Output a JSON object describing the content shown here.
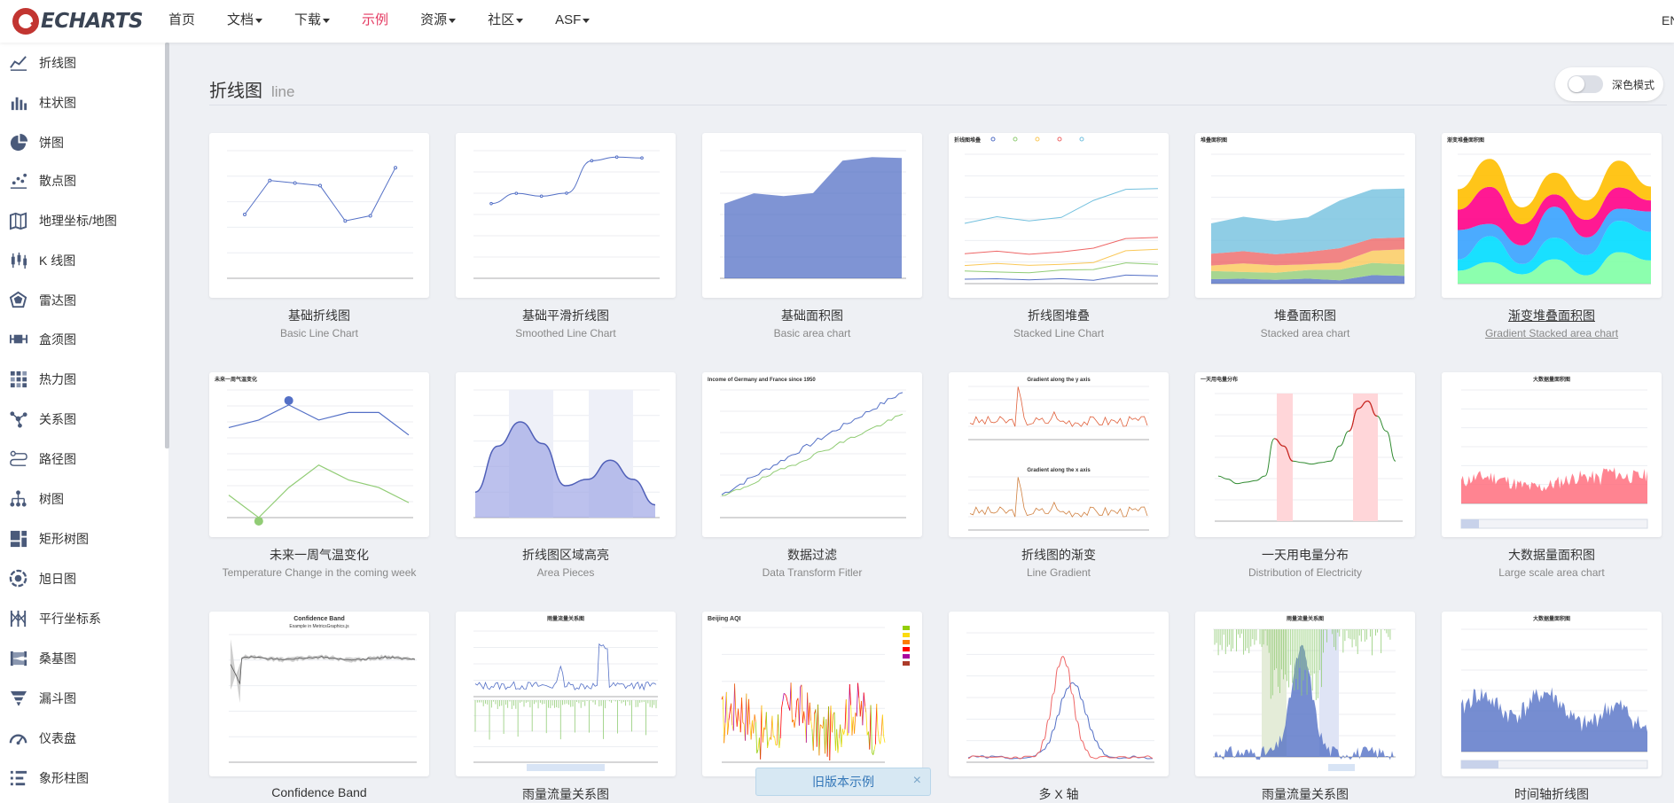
{
  "brand": {
    "logo_text": "ECHARTS",
    "accent": "#e43961",
    "logo_red": "#c23531"
  },
  "nav": {
    "items": [
      {
        "label": "首页",
        "dropdown": false,
        "active": false
      },
      {
        "label": "文档",
        "dropdown": true,
        "active": false
      },
      {
        "label": "下载",
        "dropdown": true,
        "active": false
      },
      {
        "label": "示例",
        "dropdown": false,
        "active": true
      },
      {
        "label": "资源",
        "dropdown": true,
        "active": false
      },
      {
        "label": "社区",
        "dropdown": true,
        "active": false
      },
      {
        "label": "ASF",
        "dropdown": true,
        "active": false
      }
    ],
    "lang": "EN"
  },
  "sidebar": {
    "items": [
      {
        "label": "折线图",
        "icon": "line-chart-icon"
      },
      {
        "label": "柱状图",
        "icon": "bar-chart-icon"
      },
      {
        "label": "饼图",
        "icon": "pie-chart-icon"
      },
      {
        "label": "散点图",
        "icon": "scatter-chart-icon"
      },
      {
        "label": "地理坐标/地图",
        "icon": "map-icon"
      },
      {
        "label": "K 线图",
        "icon": "candlestick-icon"
      },
      {
        "label": "雷达图",
        "icon": "radar-icon"
      },
      {
        "label": "盒须图",
        "icon": "boxplot-icon"
      },
      {
        "label": "热力图",
        "icon": "heatmap-icon"
      },
      {
        "label": "关系图",
        "icon": "graph-icon"
      },
      {
        "label": "路径图",
        "icon": "lines-icon"
      },
      {
        "label": "树图",
        "icon": "tree-icon"
      },
      {
        "label": "矩形树图",
        "icon": "treemap-icon"
      },
      {
        "label": "旭日图",
        "icon": "sunburst-icon"
      },
      {
        "label": "平行坐标系",
        "icon": "parallel-icon"
      },
      {
        "label": "桑基图",
        "icon": "sankey-icon"
      },
      {
        "label": "漏斗图",
        "icon": "funnel-icon"
      },
      {
        "label": "仪表盘",
        "icon": "gauge-icon"
      },
      {
        "label": "象形柱图",
        "icon": "pictorial-bar-icon"
      }
    ]
  },
  "page": {
    "title": "折线图",
    "subtitle": "line",
    "dark_mode_label": "深色模式",
    "dark_mode_on": false
  },
  "examples": [
    {
      "title": "基础折线图",
      "subtitle": "Basic Line Chart",
      "thumb": "basic-line"
    },
    {
      "title": "基础平滑折线图",
      "subtitle": "Smoothed Line Chart",
      "thumb": "smooth-line"
    },
    {
      "title": "基础面积图",
      "subtitle": "Basic area chart",
      "thumb": "basic-area"
    },
    {
      "title": "折线图堆叠",
      "subtitle": "Stacked Line Chart",
      "thumb": "stacked-line"
    },
    {
      "title": "堆叠面积图",
      "subtitle": "Stacked area chart",
      "thumb": "stacked-area"
    },
    {
      "title": "渐变堆叠面积图",
      "subtitle": "Gradient Stacked area chart",
      "thumb": "gradient-stacked"
    },
    {
      "title": "未来一周气温变化",
      "subtitle": "Temperature Change in the coming week",
      "thumb": "temperature"
    },
    {
      "title": "折线图区域高亮",
      "subtitle": "Area Pieces",
      "thumb": "area-pieces"
    },
    {
      "title": "数据过滤",
      "subtitle": "Data Transform Fitler",
      "thumb": "data-transform"
    },
    {
      "title": "折线图的渐变",
      "subtitle": "Line Gradient",
      "thumb": "line-gradient"
    },
    {
      "title": "一天用电量分布",
      "subtitle": "Distribution of Electricity",
      "thumb": "electricity"
    },
    {
      "title": "大数据量面积图",
      "subtitle": "Large scale area chart",
      "thumb": "large-area"
    },
    {
      "title": "Confidence Band",
      "subtitle": "",
      "thumb": "confidence"
    },
    {
      "title": "雨量流量关系图",
      "subtitle": "",
      "thumb": "rainfall"
    },
    {
      "title": "",
      "subtitle": "",
      "thumb": "aqi"
    },
    {
      "title": "多 X 轴",
      "subtitle": "",
      "thumb": "multi-x"
    },
    {
      "title": "雨量流量关系图",
      "subtitle": "",
      "thumb": "rainfall2"
    },
    {
      "title": "时间轴折线图",
      "subtitle": "",
      "thumb": "time-axis"
    }
  ],
  "thumb_text": {
    "stacked_line_title": "折线图堆叠",
    "stacked_area_title": "堆叠面积图",
    "gradient_stacked_title": "渐变堆叠面积图",
    "temperature_title": "未来一周气温变化",
    "data_transform_title": "Income of Germany and France since 1950",
    "gradient_y_title": "Gradient along the y axis",
    "gradient_x_title": "Gradient along the x axis",
    "electricity_title": "一天用电量分布",
    "large_area_title": "大数据量面积图",
    "confidence_title": "Confidence Band",
    "confidence_sub": "Example in MetricsGraphics.js",
    "rainfall_title": "雨量流量关系图",
    "aqi_title": "Beijing AQI",
    "time_axis_title": "大数据量面积图"
  },
  "toast": {
    "label": "旧版本示例",
    "close": "×"
  }
}
